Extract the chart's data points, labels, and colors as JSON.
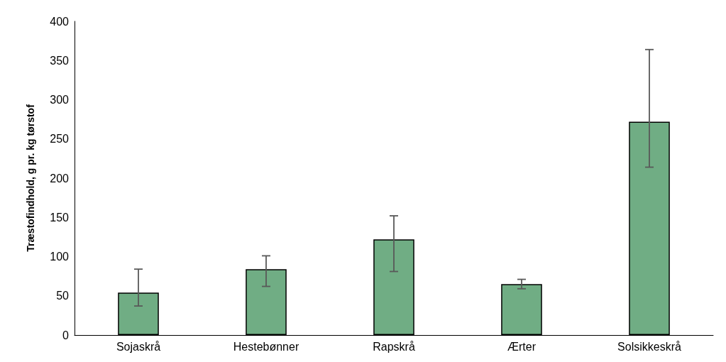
{
  "chart_data": {
    "type": "bar",
    "ylabel": "Træstofindhold, g pr. kg tørstof",
    "categories": [
      "Sojaskrå",
      "Hestebønner",
      "Rapskrå",
      "Ærter",
      "Solsikkeskrå"
    ],
    "values": [
      54,
      84,
      122,
      65,
      272
    ],
    "errors": [
      [
        37,
        84
      ],
      [
        62,
        101
      ],
      [
        81,
        152
      ],
      [
        59,
        71
      ],
      [
        214,
        364
      ]
    ],
    "color": "#70ad84",
    "ylim": [
      0,
      400
    ],
    "yticks": [
      0,
      50,
      100,
      150,
      200,
      250,
      300,
      350,
      400
    ],
    "grid": false
  }
}
